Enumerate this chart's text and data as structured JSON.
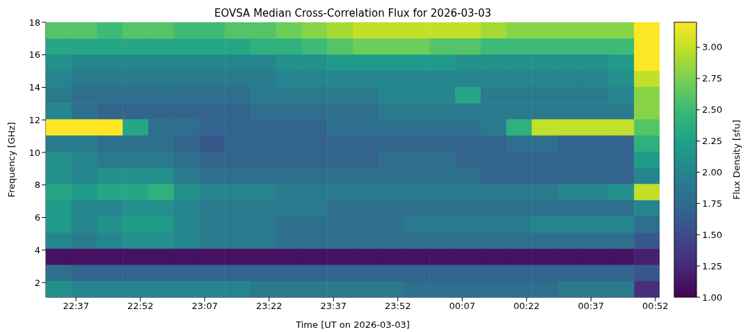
{
  "chart_data": {
    "type": "heatmap",
    "title": "EOVSA Median Cross-Correlation Flux for 2026-03-03",
    "xlabel": "Time [UT on 2026-03-03]",
    "ylabel": "Frequency [GHz]",
    "clabel": "Flux Density [sfu]",
    "xlim": [
      "2026-03-03T22:30",
      "2026-03-04T00:53"
    ],
    "xticks": [
      {
        "value": "2026-03-03T22:37",
        "label": "22:37"
      },
      {
        "value": "2026-03-03T22:52",
        "label": "22:52"
      },
      {
        "value": "2026-03-03T23:07",
        "label": "23:07"
      },
      {
        "value": "2026-03-03T23:22",
        "label": "23:22"
      },
      {
        "value": "2026-03-03T23:37",
        "label": "23:37"
      },
      {
        "value": "2026-03-03T23:52",
        "label": "23:52"
      },
      {
        "value": "2026-03-04T00:07",
        "label": "00:07"
      },
      {
        "value": "2026-03-04T00:22",
        "label": "00:22"
      },
      {
        "value": "2026-03-04T00:37",
        "label": "00:37"
      },
      {
        "value": "2026-03-04T00:52",
        "label": "00:52"
      }
    ],
    "ylim": [
      1.1,
      18
    ],
    "yticks": [
      2,
      4,
      6,
      8,
      10,
      12,
      14,
      16,
      18
    ],
    "clim": [
      1.0,
      3.2
    ],
    "cticks": [
      {
        "value": 1,
        "label": "1.00"
      },
      {
        "value": 1.25,
        "label": "1.25"
      },
      {
        "value": 1.5,
        "label": "1.50"
      },
      {
        "value": 1.75,
        "label": "1.75"
      },
      {
        "value": 2,
        "label": "2.00"
      },
      {
        "value": 2.25,
        "label": "2.25"
      },
      {
        "value": 2.5,
        "label": "2.50"
      },
      {
        "value": 2.75,
        "label": "2.75"
      },
      {
        "value": 3,
        "label": "3.00"
      }
    ],
    "cells": [
      [
        2.6,
        2.6,
        2.5,
        2.6,
        2.6,
        2.5,
        2.5,
        2.6,
        2.6,
        2.7,
        2.8,
        2.9,
        3.0,
        3.0,
        3.0,
        3.0,
        3.0,
        2.9,
        2.8,
        2.8,
        2.8,
        2.8,
        2.8,
        3.2
      ],
      [
        2.3,
        2.3,
        2.3,
        2.3,
        2.3,
        2.3,
        2.3,
        2.3,
        2.4,
        2.4,
        2.5,
        2.6,
        2.7,
        2.7,
        2.7,
        2.6,
        2.6,
        2.5,
        2.5,
        2.5,
        2.5,
        2.5,
        2.5,
        3.2
      ],
      [
        2.1,
        2.0,
        2.0,
        2.0,
        2.0,
        2.0,
        2.0,
        2.0,
        2.0,
        2.1,
        2.1,
        2.2,
        2.2,
        2.2,
        2.2,
        2.2,
        2.1,
        2.1,
        2.1,
        2.1,
        2.1,
        2.1,
        2.2,
        3.2
      ],
      [
        2.0,
        1.9,
        1.9,
        1.9,
        1.9,
        1.9,
        1.9,
        1.9,
        1.9,
        2.0,
        2.0,
        2.0,
        2.0,
        2.0,
        2.0,
        2.0,
        2.0,
        2.0,
        2.0,
        2.0,
        2.0,
        2.0,
        2.1,
        3.0
      ],
      [
        1.9,
        1.8,
        1.8,
        1.8,
        1.8,
        1.8,
        1.8,
        1.8,
        1.9,
        1.9,
        1.9,
        1.9,
        1.9,
        2.0,
        2.0,
        2.0,
        2.3,
        1.9,
        1.9,
        1.9,
        1.9,
        1.9,
        2.0,
        2.8
      ],
      [
        2.0,
        1.8,
        1.7,
        1.7,
        1.7,
        1.7,
        1.7,
        1.7,
        1.8,
        1.8,
        1.8,
        1.8,
        1.8,
        1.9,
        1.9,
        1.9,
        1.9,
        1.9,
        1.9,
        1.9,
        1.9,
        1.9,
        1.9,
        2.8
      ],
      [
        3.2,
        3.2,
        3.2,
        2.3,
        1.8,
        1.8,
        1.7,
        1.7,
        1.7,
        1.7,
        1.7,
        1.8,
        1.8,
        1.8,
        1.8,
        1.8,
        1.8,
        1.9,
        2.4,
        3.0,
        3.0,
        3.0,
        3.0,
        2.6
      ],
      [
        1.9,
        1.9,
        1.8,
        1.8,
        1.8,
        1.7,
        1.6,
        1.7,
        1.7,
        1.7,
        1.7,
        1.7,
        1.7,
        1.7,
        1.7,
        1.7,
        1.7,
        1.7,
        1.8,
        1.8,
        1.7,
        1.7,
        1.7,
        2.4
      ],
      [
        2.1,
        2.0,
        1.9,
        1.9,
        1.9,
        1.8,
        1.7,
        1.7,
        1.7,
        1.7,
        1.7,
        1.7,
        1.7,
        1.8,
        1.8,
        1.8,
        1.7,
        1.7,
        1.7,
        1.7,
        1.7,
        1.7,
        1.7,
        2.2
      ],
      [
        2.1,
        2.0,
        2.1,
        2.1,
        2.1,
        1.9,
        1.8,
        1.8,
        1.8,
        1.8,
        1.8,
        1.8,
        1.8,
        1.8,
        1.8,
        1.8,
        1.8,
        1.7,
        1.7,
        1.7,
        1.7,
        1.7,
        1.7,
        2.0
      ],
      [
        2.3,
        2.2,
        2.3,
        2.3,
        2.4,
        2.1,
        2.0,
        2.0,
        2.0,
        1.9,
        1.9,
        1.9,
        1.9,
        1.9,
        1.9,
        1.9,
        1.9,
        1.9,
        1.9,
        1.9,
        2.0,
        2.0,
        2.1,
        3.0
      ],
      [
        2.2,
        2.0,
        2.0,
        2.1,
        2.1,
        2.0,
        1.9,
        1.9,
        1.9,
        1.9,
        1.9,
        1.8,
        1.8,
        1.8,
        1.8,
        1.8,
        1.8,
        1.8,
        1.8,
        1.8,
        1.8,
        1.8,
        1.8,
        2.0
      ],
      [
        2.2,
        2.0,
        2.1,
        2.2,
        2.2,
        2.0,
        1.9,
        1.9,
        1.9,
        1.8,
        1.8,
        1.8,
        1.8,
        1.8,
        1.9,
        1.9,
        1.9,
        1.9,
        1.9,
        2.0,
        2.0,
        2.0,
        2.0,
        1.8
      ],
      [
        2.0,
        1.9,
        2.0,
        2.1,
        2.1,
        2.0,
        1.9,
        1.9,
        1.9,
        1.8,
        1.8,
        1.8,
        1.8,
        1.8,
        1.8,
        1.8,
        1.8,
        1.8,
        1.8,
        1.8,
        1.8,
        1.8,
        1.8,
        1.6
      ],
      [
        1.1,
        1.1,
        1.1,
        1.1,
        1.1,
        1.1,
        1.1,
        1.1,
        1.1,
        1.1,
        1.1,
        1.1,
        1.1,
        1.1,
        1.1,
        1.1,
        1.1,
        1.1,
        1.1,
        1.1,
        1.1,
        1.1,
        1.1,
        1.2
      ],
      [
        1.8,
        1.7,
        1.7,
        1.7,
        1.7,
        1.7,
        1.7,
        1.7,
        1.7,
        1.7,
        1.7,
        1.7,
        1.7,
        1.7,
        1.7,
        1.7,
        1.7,
        1.7,
        1.7,
        1.7,
        1.7,
        1.7,
        1.7,
        1.6
      ],
      [
        2.1,
        2.0,
        2.0,
        2.0,
        2.0,
        2.0,
        2.0,
        2.0,
        1.9,
        1.9,
        1.9,
        1.9,
        1.9,
        1.9,
        1.8,
        1.8,
        1.8,
        1.8,
        1.8,
        1.8,
        1.9,
        1.9,
        1.9,
        1.3
      ]
    ]
  }
}
